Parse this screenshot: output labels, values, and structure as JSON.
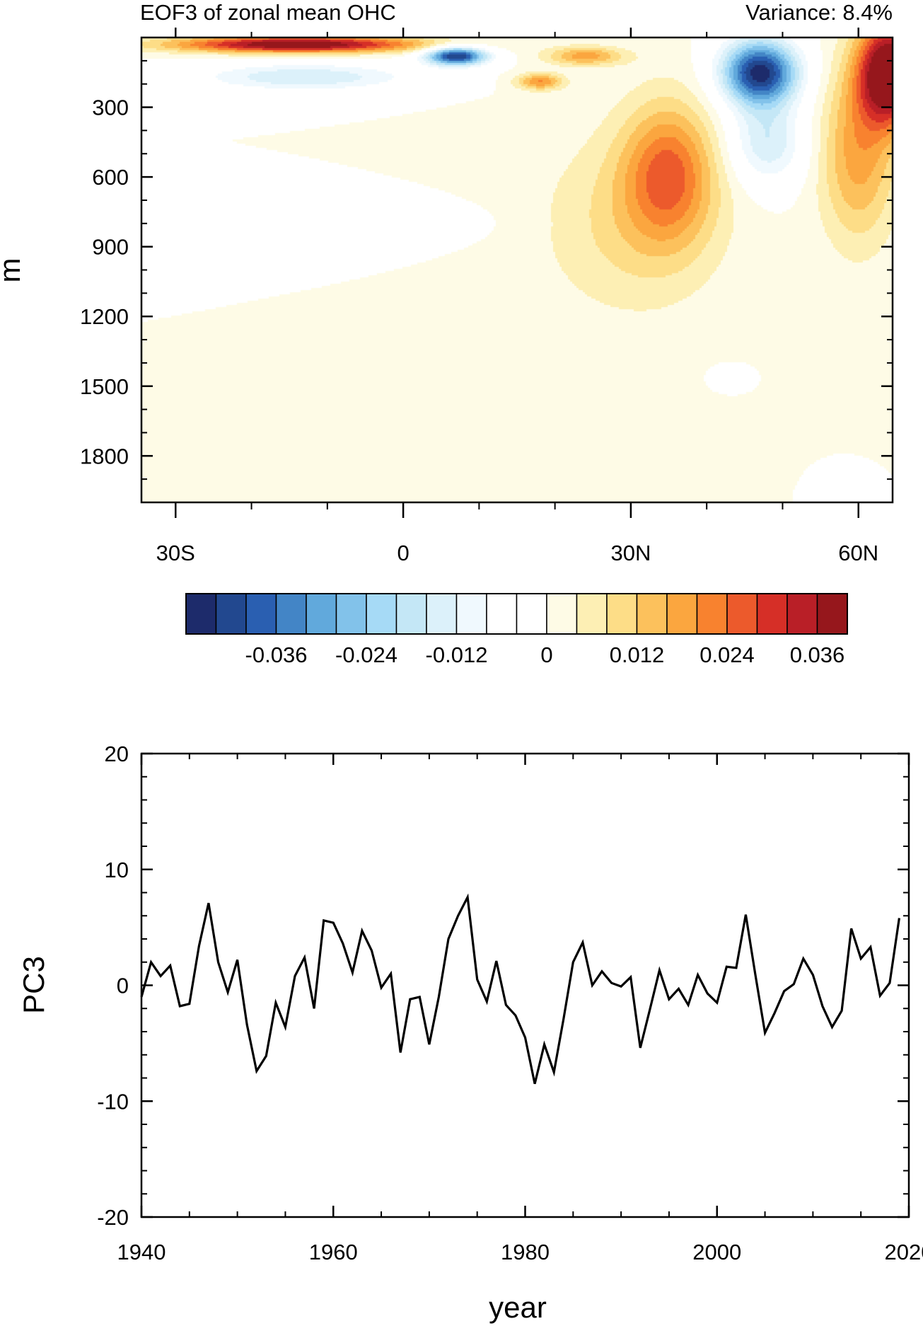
{
  "chart_data": [
    {
      "type": "heatmap",
      "title_left": "EOF3 of zonal mean OHC",
      "title_right": "Variance: 8.4%",
      "ylabel": "m",
      "xlabel": "",
      "x_range": [
        -34.5,
        64.5
      ],
      "y_range": [
        0,
        2000
      ],
      "y_reversed": true,
      "x_ticks": [
        {
          "value": -30,
          "label": "30S"
        },
        {
          "value": 0,
          "label": "0"
        },
        {
          "value": 30,
          "label": "30N"
        },
        {
          "value": 60,
          "label": "60N"
        }
      ],
      "y_ticks": [
        {
          "value": 300,
          "label": "300"
        },
        {
          "value": 600,
          "label": "600"
        },
        {
          "value": 900,
          "label": "900"
        },
        {
          "value": 1200,
          "label": "1200"
        },
        {
          "value": 1500,
          "label": "1500"
        },
        {
          "value": 1800,
          "label": "1800"
        }
      ],
      "colorbar": {
        "colors": [
          "#1d2b6b",
          "#22488f",
          "#2a5fb1",
          "#4385c6",
          "#61a9dc",
          "#82c2ea",
          "#a6daf6",
          "#c4e7f6",
          "#dcf1fa",
          "#f0f9fe",
          "#ffffff",
          "#ffffff",
          "#fefbe6",
          "#fdefb4",
          "#fddd87",
          "#fcc15c",
          "#fba63f",
          "#f8822f",
          "#ec5a2c",
          "#d62f27",
          "#b91f27",
          "#96171c"
        ],
        "labels": [
          {
            "index": 2,
            "label": "-0.036"
          },
          {
            "index": 5,
            "label": "-0.024"
          },
          {
            "index": 8,
            "label": "-0.012"
          },
          {
            "index": 11,
            "label": "0"
          },
          {
            "index": 14,
            "label": "0.012"
          },
          {
            "index": 17,
            "label": "0.024"
          },
          {
            "index": 20,
            "label": "0.036"
          }
        ]
      },
      "field_blobs": [
        {
          "name": "surface-warm-southern-band",
          "lat_center": -14,
          "depth_center": 30,
          "lat_radius": 16,
          "depth_radius": 35,
          "amplitude": 0.043
        },
        {
          "name": "subsurface-cool-south",
          "lat_center": -13,
          "depth_center": 170,
          "lat_radius": 14,
          "depth_radius": 60,
          "amplitude": -0.016
        },
        {
          "name": "equatorial-cool-core",
          "lat_center": 7,
          "depth_center": 80,
          "lat_radius": 4,
          "depth_radius": 40,
          "amplitude": -0.045
        },
        {
          "name": "deep-cool-south",
          "lat_center": -12,
          "depth_center": 800,
          "lat_radius": 18,
          "depth_radius": 80,
          "amplitude": -0.006
        },
        {
          "name": "upper-warm-tropics",
          "lat_center": 24,
          "depth_center": 80,
          "lat_radius": 5,
          "depth_radius": 40,
          "amplitude": 0.018
        },
        {
          "name": "warm-patch-18n",
          "lat_center": 18,
          "depth_center": 190,
          "lat_radius": 3,
          "depth_radius": 35,
          "amplitude": 0.02
        },
        {
          "name": "subsurface-warm-36n",
          "lat_center": 35,
          "depth_center": 580,
          "lat_radius": 6,
          "depth_radius": 300,
          "amplitude": 0.022
        },
        {
          "name": "broad-warm-midlat",
          "lat_center": 30,
          "depth_center": 800,
          "lat_radius": 12,
          "depth_radius": 400,
          "amplitude": 0.009
        },
        {
          "name": "upper-cool-core-47n",
          "lat_center": 47,
          "depth_center": 150,
          "lat_radius": 5,
          "depth_radius": 140,
          "amplitude": -0.046
        },
        {
          "name": "cool-extension-48n",
          "lat_center": 48,
          "depth_center": 450,
          "lat_radius": 5,
          "depth_radius": 180,
          "amplitude": -0.016
        },
        {
          "name": "surface-warm-64n",
          "lat_center": 64,
          "depth_center": 150,
          "lat_radius": 4,
          "depth_radius": 220,
          "amplitude": 0.046
        },
        {
          "name": "warm-extension-60n",
          "lat_center": 60,
          "depth_center": 500,
          "lat_radius": 5,
          "depth_radius": 380,
          "amplitude": 0.018
        },
        {
          "name": "deep-cool-60n",
          "lat_center": 58,
          "depth_center": 1980,
          "lat_radius": 2,
          "depth_radius": 60,
          "amplitude": -0.005
        },
        {
          "name": "deep-cool-43n",
          "lat_center": 43,
          "depth_center": 1460,
          "lat_radius": 2,
          "depth_radius": 40,
          "amplitude": -0.005
        }
      ]
    },
    {
      "type": "line",
      "title": "",
      "xlabel": "year",
      "ylabel": "PC3",
      "xlim": [
        1940,
        2020
      ],
      "ylim": [
        -20,
        20
      ],
      "x_ticks": [
        1940,
        1960,
        1980,
        2000,
        2020
      ],
      "y_ticks": [
        {
          "value": 20,
          "label": "20"
        },
        {
          "value": 10,
          "label": "10"
        },
        {
          "value": 0,
          "label": "0"
        },
        {
          "value": -10,
          "label": "-10"
        },
        {
          "value": -20,
          "label": "-20"
        }
      ],
      "x": [
        1940,
        1941,
        1942,
        1943,
        1944,
        1945,
        1946,
        1947,
        1948,
        1949,
        1950,
        1951,
        1952,
        1953,
        1954,
        1955,
        1956,
        1957,
        1958,
        1959,
        1960,
        1961,
        1962,
        1963,
        1964,
        1965,
        1966,
        1967,
        1968,
        1969,
        1970,
        1971,
        1972,
        1973,
        1974,
        1975,
        1976,
        1977,
        1978,
        1979,
        1980,
        1981,
        1982,
        1983,
        1984,
        1985,
        1986,
        1987,
        1988,
        1989,
        1990,
        1991,
        1992,
        1993,
        1994,
        1995,
        1996,
        1997,
        1998,
        1999,
        2000,
        2001,
        2002,
        2003,
        2004,
        2005,
        2006,
        2007,
        2008,
        2009,
        2010,
        2011,
        2012,
        2013,
        2014,
        2015,
        2016,
        2017,
        2018,
        2019
      ],
      "series": [
        {
          "name": "PC3",
          "color": "#000000",
          "values": [
            -1.0,
            2.0,
            0.8,
            1.7,
            -1.8,
            -1.6,
            3.4,
            7.1,
            2.0,
            -0.6,
            2.2,
            -3.4,
            -7.4,
            -6.1,
            -1.5,
            -3.6,
            0.8,
            2.4,
            -2.0,
            5.6,
            5.4,
            3.6,
            1.1,
            4.7,
            3.0,
            -0.2,
            1.0,
            -5.8,
            -1.2,
            -1.0,
            -5.1,
            -1.0,
            4.0,
            6.0,
            7.6,
            0.5,
            -1.4,
            2.1,
            -1.7,
            -2.6,
            -4.5,
            -8.5,
            -5.1,
            -7.5,
            -2.9,
            2.0,
            3.7,
            0.0,
            1.2,
            0.2,
            -0.1,
            0.7,
            -5.4,
            -2.1,
            1.3,
            -1.2,
            -0.3,
            -1.7,
            0.9,
            -0.7,
            -1.5,
            1.6,
            1.5,
            6.1,
            0.9,
            -4.1,
            -2.4,
            -0.5,
            0.1,
            2.3,
            0.9,
            -1.8,
            -3.6,
            -2.2,
            4.9,
            2.3,
            3.3,
            -0.9,
            0.2,
            5.8
          ]
        }
      ]
    }
  ]
}
